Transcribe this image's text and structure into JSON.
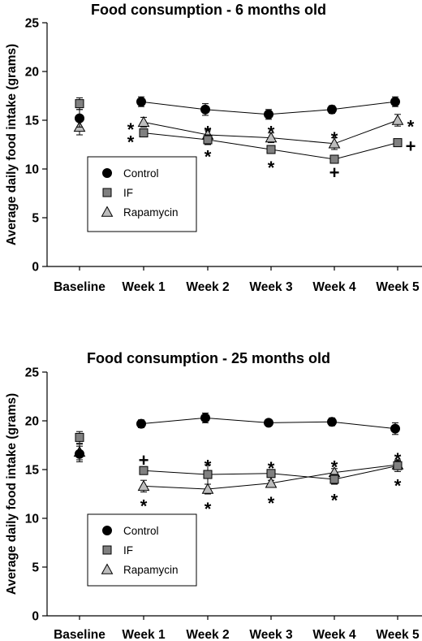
{
  "chart_data": [
    {
      "type": "line",
      "title": "Food consumption - 6 months old",
      "ylabel": "Average daily food intake (grams)",
      "xlabel": "",
      "categories": [
        "Baseline",
        "Week 1",
        "Week 2",
        "Week 3",
        "Week 4",
        "Week 5"
      ],
      "ylim": [
        0,
        25
      ],
      "yticks": [
        0,
        5,
        10,
        15,
        20,
        25
      ],
      "grid": false,
      "legend_placement": "lower-left",
      "series": [
        {
          "name": "Control",
          "marker": "circle",
          "color": "#000000",
          "values": [
            15.2,
            16.9,
            16.1,
            15.6,
            16.1,
            16.9
          ],
          "errors": [
            0.9,
            0.5,
            0.6,
            0.5,
            0.4,
            0.5
          ]
        },
        {
          "name": "IF",
          "marker": "square",
          "color": "#808080",
          "values": [
            16.7,
            13.7,
            13.0,
            12.0,
            11.0,
            12.7
          ],
          "errors": [
            0.6,
            0.4,
            0.5,
            0.4,
            0.4,
            0.3
          ]
        },
        {
          "name": "Rapamycin",
          "marker": "triangle",
          "color": "#bdbdbd",
          "values": [
            14.3,
            14.8,
            13.5,
            13.2,
            12.6,
            15.0
          ],
          "errors": [
            0.8,
            0.5,
            0.5,
            0.5,
            0.6,
            0.6
          ]
        }
      ],
      "annotations": [
        {
          "text": "*",
          "category": "Week 1",
          "y": 14.5,
          "side": "left"
        },
        {
          "text": "*",
          "category": "Week 1",
          "y": 13.2,
          "side": "left"
        },
        {
          "text": "*",
          "category": "Week 2",
          "y": 14.2,
          "side": "center"
        },
        {
          "text": "*",
          "category": "Week 2",
          "y": 11.7,
          "side": "center"
        },
        {
          "text": "*",
          "category": "Week 3",
          "y": 14.2,
          "side": "center"
        },
        {
          "text": "*",
          "category": "Week 3",
          "y": 10.6,
          "side": "center"
        },
        {
          "text": "*",
          "category": "Week 4",
          "y": 13.6,
          "side": "center"
        },
        {
          "text": "+",
          "category": "Week 4",
          "y": 9.6,
          "side": "center"
        },
        {
          "text": "*",
          "category": "Week 5",
          "y": 14.8,
          "side": "right"
        },
        {
          "text": "+",
          "category": "Week 5",
          "y": 12.3,
          "side": "right"
        }
      ]
    },
    {
      "type": "line",
      "title": "Food consumption - 25 months old",
      "ylabel": "Average daily food intake (grams)",
      "xlabel": "",
      "categories": [
        "Baseline",
        "Week 1",
        "Week 2",
        "Week 3",
        "Week 4",
        "Week 5"
      ],
      "ylim": [
        0,
        25
      ],
      "yticks": [
        0,
        5,
        10,
        15,
        20,
        25
      ],
      "grid": false,
      "legend_placement": "lower-left",
      "series": [
        {
          "name": "Control",
          "marker": "circle",
          "color": "#000000",
          "values": [
            16.6,
            19.7,
            20.3,
            19.8,
            19.9,
            19.2
          ],
          "errors": [
            0.8,
            0.4,
            0.5,
            0.3,
            0.4,
            0.6
          ]
        },
        {
          "name": "IF",
          "marker": "square",
          "color": "#808080",
          "values": [
            18.3,
            14.9,
            14.5,
            14.6,
            14.0,
            15.4
          ],
          "errors": [
            0.6,
            0.4,
            1.0,
            0.4,
            0.5,
            0.6
          ]
        },
        {
          "name": "Rapamycin",
          "marker": "triangle",
          "color": "#bdbdbd",
          "values": [
            16.8,
            13.3,
            13.0,
            13.6,
            14.7,
            15.5
          ],
          "errors": [
            0.8,
            0.6,
            0.5,
            0.3,
            0.4,
            0.4
          ]
        }
      ],
      "annotations": [
        {
          "text": "+",
          "category": "Week 1",
          "y": 15.9,
          "side": "center"
        },
        {
          "text": "*",
          "category": "Week 1",
          "y": 11.7,
          "side": "center"
        },
        {
          "text": "*",
          "category": "Week 2",
          "y": 15.8,
          "side": "center"
        },
        {
          "text": "*",
          "category": "Week 2",
          "y": 11.4,
          "side": "center"
        },
        {
          "text": "*",
          "category": "Week 3",
          "y": 15.6,
          "side": "center"
        },
        {
          "text": "*",
          "category": "Week 3",
          "y": 12.0,
          "side": "center"
        },
        {
          "text": "*",
          "category": "Week 4",
          "y": 15.7,
          "side": "center"
        },
        {
          "text": "*",
          "category": "Week 4",
          "y": 12.3,
          "side": "center"
        },
        {
          "text": "*",
          "category": "Week 5",
          "y": 16.5,
          "side": "center"
        },
        {
          "text": "*",
          "category": "Week 5",
          "y": 13.8,
          "side": "center"
        }
      ]
    }
  ]
}
